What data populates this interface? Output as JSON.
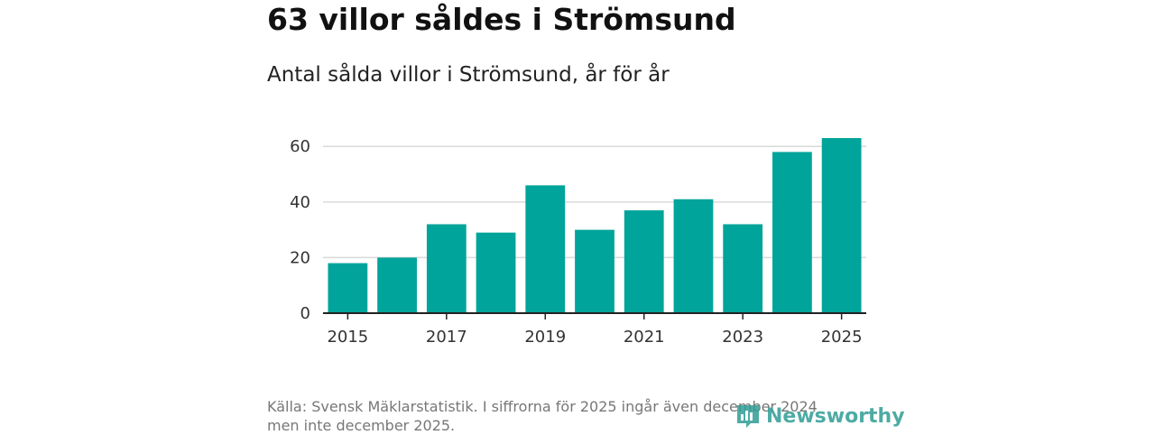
{
  "header": {
    "title": "63 villor såldes i Strömsund",
    "subtitle": "Antal sålda villor i Strömsund, år för år"
  },
  "footer": {
    "source_line1": "Källa: Svensk Mäklarstatistik. I siffrorna för 2025 ingår även december 2024",
    "source_line2": "men inte december 2025.",
    "logo_text": "Newsworthy",
    "logo_icon": "bar-chart-icon",
    "logo_color": "#2f9d95"
  },
  "chart_data": {
    "type": "bar",
    "title": "Antal sålda villor i Strömsund, år för år",
    "xlabel": "",
    "ylabel": "",
    "categories": [
      "2015",
      "2016",
      "2017",
      "2018",
      "2019",
      "2020",
      "2021",
      "2022",
      "2023",
      "2024",
      "2025"
    ],
    "values": [
      18,
      20,
      32,
      29,
      46,
      30,
      37,
      41,
      32,
      58,
      63
    ],
    "x_tick_labels": [
      "2015",
      "2017",
      "2019",
      "2021",
      "2023",
      "2025"
    ],
    "y_ticks": [
      0,
      20,
      40,
      60
    ],
    "ylim": [
      0,
      63
    ],
    "grid": true,
    "bar_color": "#00a49a"
  }
}
